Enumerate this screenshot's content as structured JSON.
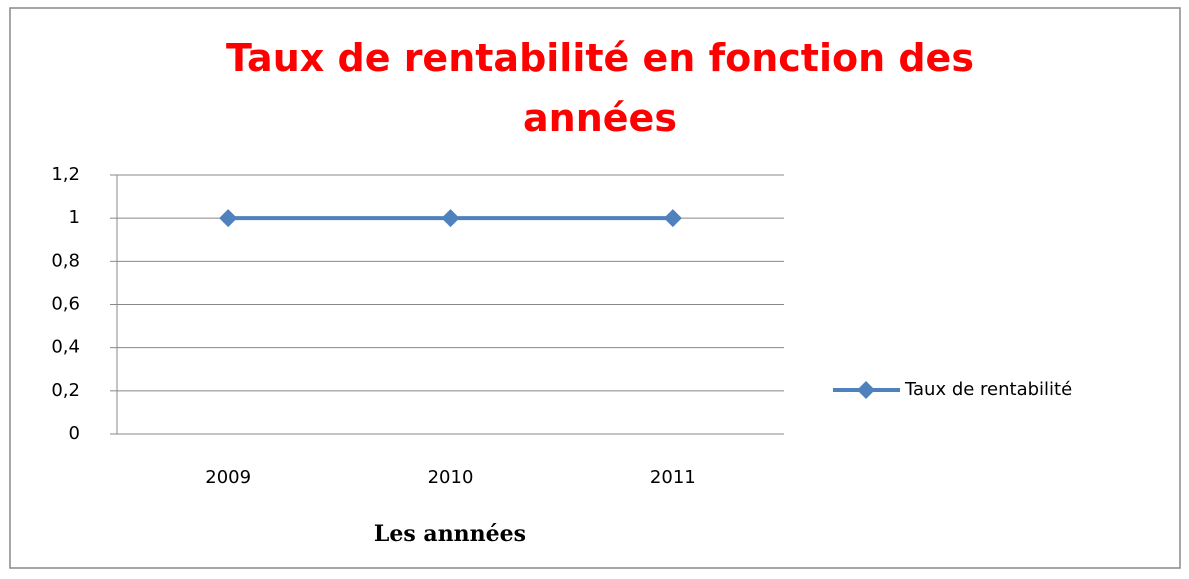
{
  "chart_data": {
    "type": "line",
    "title": "Taux de rentabilité en fonction des années",
    "x_label": "Les annnées",
    "categories": [
      "2009",
      "2010",
      "2011"
    ],
    "series": [
      {
        "name": "Taux de rentabilité",
        "color": "#4f81bd",
        "values": [
          1,
          1,
          1
        ]
      }
    ],
    "ylim": [
      0,
      1.2
    ],
    "yticks": [
      0,
      {
        "value": 0.2,
        "label": "0,2"
      },
      {
        "value": 0.4,
        "label": "0,4"
      },
      {
        "value": 0.6,
        "label": "0,6"
      },
      {
        "value": 0.8,
        "label": "0,8"
      },
      1,
      {
        "value": 1.2,
        "label": "1,2"
      }
    ],
    "grid": true,
    "legend": "right",
    "title_color": "#ff0000"
  }
}
